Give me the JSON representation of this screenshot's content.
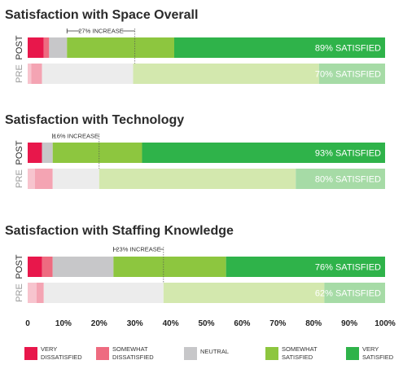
{
  "chart_data": {
    "type": "bar",
    "orientation": "horizontal",
    "stacked": true,
    "xlim": [
      0,
      100
    ],
    "x_ticks": [
      "0",
      "10%",
      "20%",
      "30%",
      "40%",
      "50%",
      "60%",
      "70%",
      "80%",
      "90%",
      "100%"
    ],
    "categories": [
      "VERY DISSATISFIED",
      "SOMEWHAT DISSATISFIED",
      "NEUTRAL",
      "SOMEWHAT SATISFIED",
      "VERY SATISFIED"
    ],
    "colors": {
      "post": [
        "#e8174b",
        "#ee6b80",
        "#c7c7c9",
        "#8dc63f",
        "#2fb34a"
      ],
      "pre": [
        "#f7c4ce",
        "#f4a4b3",
        "#ececec",
        "#d3e8ae",
        "#a6dba6"
      ]
    },
    "legend": [
      {
        "lines": [
          "VERY",
          "DISSATISFIED"
        ],
        "color": "#e8174b"
      },
      {
        "lines": [
          "SOMEWHAT",
          "DISSATISFIED"
        ],
        "color": "#ee6b80"
      },
      {
        "lines": [
          "NEUTRAL"
        ],
        "color": "#c7c7c9"
      },
      {
        "lines": [
          "SOMEWHAT",
          "SATISFIED"
        ],
        "color": "#8dc63f"
      },
      {
        "lines": [
          "VERY",
          "SATISFIED"
        ],
        "color": "#2fb34a"
      }
    ],
    "panels": [
      {
        "title": "Satisfaction with Space Overall",
        "post": {
          "label": "POST",
          "values": [
            4.5,
            1.5,
            5,
            30,
            59
          ],
          "satisfied_label": "89% SATISFIED"
        },
        "pre": {
          "label": "PRE",
          "values": [
            1,
            3,
            25.5,
            52,
            18.5
          ],
          "satisfied_label": "70% SATISFIED"
        },
        "increase": {
          "label": "27% INCREASE",
          "from": 11,
          "to": 30
        }
      },
      {
        "title": "Satisfaction with Technology",
        "post": {
          "label": "POST",
          "values": [
            4,
            0,
            3,
            25,
            68
          ],
          "satisfied_label": "93% SATISFIED"
        },
        "pre": {
          "label": "PRE",
          "values": [
            2,
            5,
            13,
            55,
            25
          ],
          "satisfied_label": "80% SATISFIED"
        },
        "increase": {
          "label": "16% INCREASE",
          "from": 7,
          "to": 20
        }
      },
      {
        "title": "Satisfaction with Staffing Knowledge",
        "post": {
          "label": "POST",
          "values": [
            4,
            3,
            17,
            31.5,
            44.5
          ],
          "satisfied_label": "76% SATISFIED"
        },
        "pre": {
          "label": "PRE",
          "values": [
            2.5,
            2,
            33.5,
            45,
            17
          ],
          "satisfied_label": "62% SATISFIED"
        },
        "increase": {
          "label": "23% INCREASE",
          "from": 24,
          "to": 38
        }
      }
    ]
  }
}
